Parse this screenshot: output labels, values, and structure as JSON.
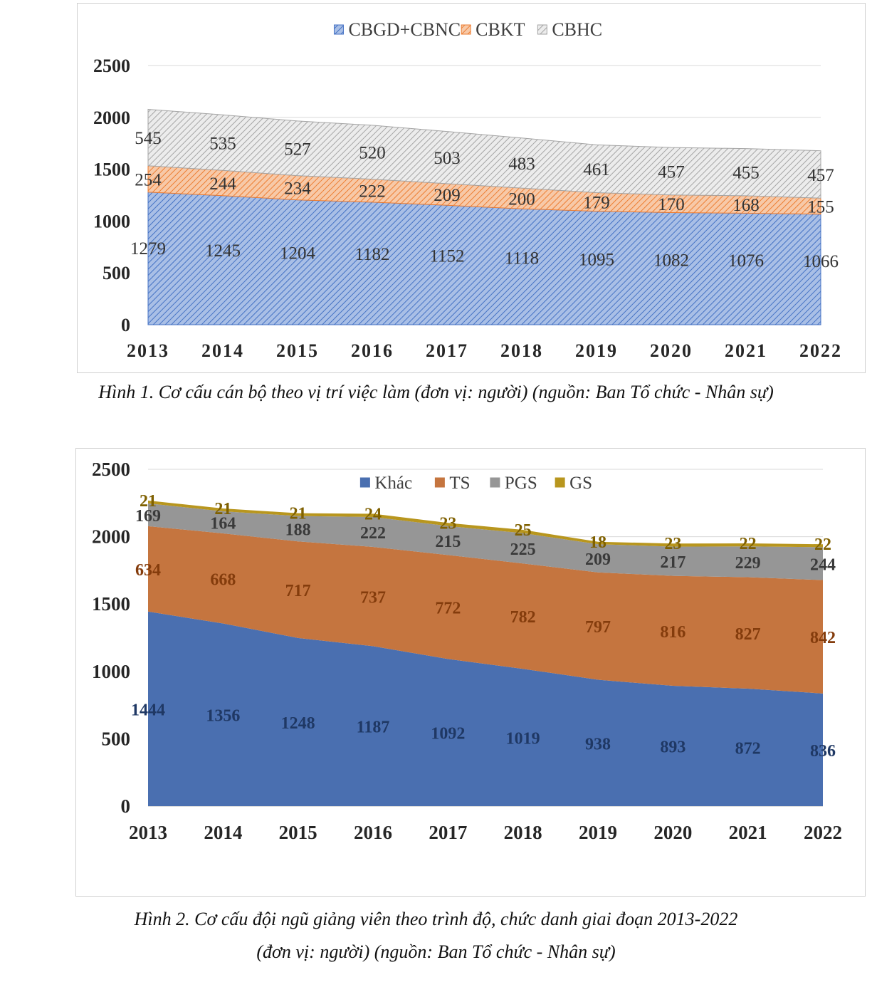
{
  "figure1": {
    "caption": "Hình 1. Cơ cấu cán bộ theo vị trí việc làm (đơn vị: người) (nguồn: Ban Tổ chức - Nhân sự)"
  },
  "figure2": {
    "caption_line1": "Hình 2. Cơ cấu đội ngũ giảng viên theo trình độ, chức danh giai đoạn 2013-2022",
    "caption_line2": "(đơn vị: người) (nguồn: Ban Tổ chức - Nhân sự)"
  },
  "chart_data": [
    {
      "type": "area",
      "stacked": true,
      "title": "",
      "xlabel": "",
      "ylabel": "",
      "x": [
        "2013",
        "2014",
        "2015",
        "2016",
        "2017",
        "2018",
        "2019",
        "2020",
        "2021",
        "2022"
      ],
      "ylim": [
        0,
        2500
      ],
      "yticks": [
        0,
        500,
        1000,
        1500,
        2000,
        2500
      ],
      "grid": true,
      "legend": "top-center",
      "series": [
        {
          "name": "CBGD+CBNC",
          "values": [
            1279,
            1245,
            1204,
            1182,
            1152,
            1118,
            1095,
            1082,
            1076,
            1066
          ],
          "color": "#4472c4",
          "pattern": "hatch"
        },
        {
          "name": "CBKT",
          "values": [
            254,
            244,
            234,
            222,
            209,
            200,
            179,
            170,
            168,
            155
          ],
          "color": "#ed7d31",
          "pattern": "hatch"
        },
        {
          "name": "CBHC",
          "values": [
            545,
            535,
            527,
            520,
            503,
            483,
            461,
            457,
            455,
            457
          ],
          "color": "#a5a5a5",
          "pattern": "hatch"
        }
      ]
    },
    {
      "type": "area",
      "stacked": true,
      "title": "",
      "xlabel": "",
      "ylabel": "",
      "x": [
        "2013",
        "2014",
        "2015",
        "2016",
        "2017",
        "2018",
        "2019",
        "2020",
        "2021",
        "2022"
      ],
      "ylim": [
        0,
        2500
      ],
      "yticks": [
        0,
        500,
        1000,
        1500,
        2000,
        2500
      ],
      "grid": true,
      "legend": "top-center",
      "series": [
        {
          "name": "Khác",
          "values": [
            1444,
            1356,
            1248,
            1187,
            1092,
            1019,
            938,
            893,
            872,
            836
          ],
          "color": "#4a6fb0",
          "label_color": "#1f3864"
        },
        {
          "name": "TS",
          "values": [
            634,
            668,
            717,
            737,
            772,
            782,
            797,
            816,
            827,
            842
          ],
          "color": "#c5753f",
          "label_color": "#843c0c"
        },
        {
          "name": "PGS",
          "values": [
            169,
            164,
            188,
            222,
            215,
            225,
            209,
            217,
            229,
            244
          ],
          "color": "#969696",
          "label_color": "#3a3a3a"
        },
        {
          "name": "GS",
          "values": [
            21,
            21,
            21,
            24,
            23,
            25,
            18,
            23,
            22,
            22
          ],
          "color": "#b8961e",
          "label_color": "#7f6000"
        }
      ]
    }
  ]
}
